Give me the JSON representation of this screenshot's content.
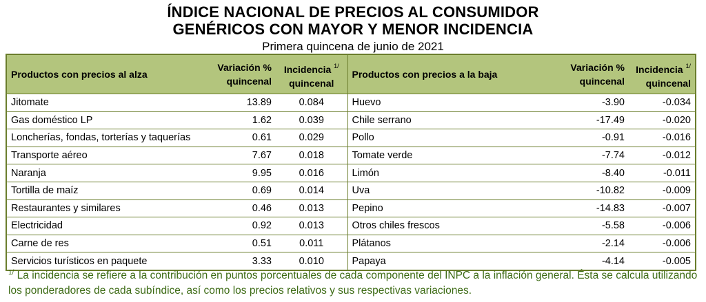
{
  "title_line1": "ÍNDICE NACIONAL DE PRECIOS AL CONSUMIDOR",
  "title_line2": "GENÉRICOS CON MAYOR Y MENOR INCIDENCIA",
  "subtitle": "Primera quincena de junio de 2021",
  "headers": {
    "up_products": "Productos con precios al alza",
    "variation_l1": "Variación %",
    "variation_l2": "quincenal",
    "incidence_l1": "Incidencia",
    "incidence_l2": "quincenal",
    "note_mark": "1/",
    "down_products": "Productos con precios a la baja"
  },
  "rows": [
    {
      "up": "Jitomate",
      "up_var": "13.89",
      "up_inc": "0.084",
      "down": "Huevo",
      "down_var": "-3.90",
      "down_inc": "-0.034"
    },
    {
      "up": "Gas doméstico LP",
      "up_var": "1.62",
      "up_inc": "0.039",
      "down": "Chile serrano",
      "down_var": "-17.49",
      "down_inc": "-0.020"
    },
    {
      "up": "Loncherías, fondas, torterías y taquerías",
      "up_var": "0.61",
      "up_inc": "0.029",
      "down": "Pollo",
      "down_var": "-0.91",
      "down_inc": "-0.016"
    },
    {
      "up": "Transporte aéreo",
      "up_var": "7.67",
      "up_inc": "0.018",
      "down": "Tomate verde",
      "down_var": "-7.74",
      "down_inc": "-0.012"
    },
    {
      "up": "Naranja",
      "up_var": "9.95",
      "up_inc": "0.016",
      "down": "Limón",
      "down_var": "-8.40",
      "down_inc": "-0.011"
    },
    {
      "up": "Tortilla de maíz",
      "up_var": "0.69",
      "up_inc": "0.014",
      "down": "Uva",
      "down_var": "-10.82",
      "down_inc": "-0.009"
    },
    {
      "up": "Restaurantes y similares",
      "up_var": "0.46",
      "up_inc": "0.013",
      "down": "Pepino",
      "down_var": "-14.83",
      "down_inc": "-0.007"
    },
    {
      "up": "Electricidad",
      "up_var": "0.92",
      "up_inc": "0.013",
      "down": "Otros chiles frescos",
      "down_var": "-5.58",
      "down_inc": "-0.006"
    },
    {
      "up": "Carne de res",
      "up_var": "0.51",
      "up_inc": "0.011",
      "down": "Plátanos",
      "down_var": "-2.14",
      "down_inc": "-0.006"
    },
    {
      "up": "Servicios turísticos en paquete",
      "up_var": "3.33",
      "up_inc": "0.010",
      "down": "Papaya",
      "down_var": "-4.14",
      "down_inc": "-0.005"
    }
  ],
  "footnote_mark": "1/",
  "footnote": "La incidencia se refiere a la contribución en puntos porcentuales de cada componente del INPC a la inflación general. Ésta se calcula utilizando los ponderadores de cada subíndice, así como los precios relativos y sus respectivas variaciones."
}
